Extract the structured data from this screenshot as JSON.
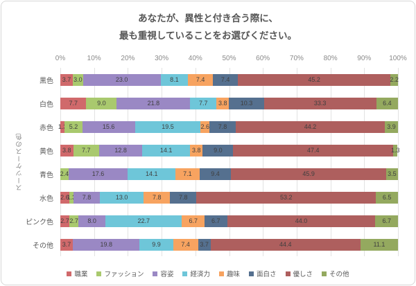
{
  "title": {
    "line1": "あなたが、異性と付き合う際に、",
    "line2": "最も重視していることをお選びください。"
  },
  "chart_data": {
    "type": "bar",
    "orientation": "horizontal-stacked",
    "title": "あなたが、異性と付き合う際に、最も重視していることをお選びください。",
    "ylabel": "スーツケースの色",
    "xlim": [
      0,
      100
    ],
    "x_ticks": [
      "0%",
      "10%",
      "20%",
      "30%",
      "40%",
      "50%",
      "60%",
      "70%",
      "80%",
      "90%",
      "100%"
    ],
    "grid": true,
    "legend_position": "bottom",
    "value_color": "#3f3f3f",
    "categories": [
      "黒色",
      "白色",
      "赤色",
      "黄色",
      "青色",
      "水色",
      "ピンク色",
      "その他"
    ],
    "series": [
      {
        "name": "職業",
        "color": "#d0696b",
        "values": [
          3.7,
          7.7,
          1.3,
          3.8,
          0,
          2.6,
          2.7,
          3.7
        ]
      },
      {
        "name": "ファッション",
        "color": "#a9c96e",
        "values": [
          3.0,
          9.0,
          5.2,
          7.7,
          2.4,
          1.3,
          2.7,
          0
        ]
      },
      {
        "name": "容姿",
        "color": "#9a88c4",
        "values": [
          23.0,
          21.8,
          15.6,
          12.8,
          17.6,
          7.8,
          8.0,
          19.8
        ]
      },
      {
        "name": "経済力",
        "color": "#6ec6d9",
        "values": [
          8.1,
          7.7,
          19.5,
          14.1,
          14.1,
          13.0,
          22.7,
          9.9
        ]
      },
      {
        "name": "趣味",
        "color": "#f7a360",
        "values": [
          7.4,
          3.8,
          2.6,
          3.8,
          7.1,
          7.8,
          6.7,
          7.4
        ]
      },
      {
        "name": "面白さ",
        "color": "#55708f",
        "values": [
          7.4,
          10.3,
          7.8,
          9.0,
          9.4,
          7.8,
          6.7,
          3.7
        ]
      },
      {
        "name": "優しさ",
        "color": "#ae5f5e",
        "values": [
          45.2,
          33.3,
          44.2,
          47.4,
          45.9,
          53.2,
          44.0,
          44.4
        ]
      },
      {
        "name": "その他",
        "color": "#94a95f",
        "values": [
          2.2,
          6.4,
          3.9,
          1.3,
          3.5,
          6.5,
          6.7,
          11.1
        ]
      }
    ]
  }
}
